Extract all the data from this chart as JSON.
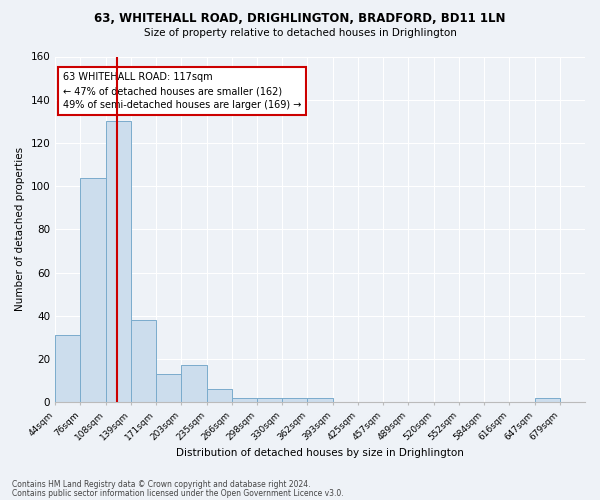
{
  "title1": "63, WHITEHALL ROAD, DRIGHLINGTON, BRADFORD, BD11 1LN",
  "title2": "Size of property relative to detached houses in Drighlington",
  "xlabel": "Distribution of detached houses by size in Drighlington",
  "ylabel": "Number of detached properties",
  "bin_labels": [
    "44sqm",
    "76sqm",
    "108sqm",
    "139sqm",
    "171sqm",
    "203sqm",
    "235sqm",
    "266sqm",
    "298sqm",
    "330sqm",
    "362sqm",
    "393sqm",
    "425sqm",
    "457sqm",
    "489sqm",
    "520sqm",
    "552sqm",
    "584sqm",
    "616sqm",
    "647sqm",
    "679sqm"
  ],
  "bar_values": [
    31,
    104,
    130,
    38,
    13,
    17,
    6,
    2,
    2,
    2,
    2,
    0,
    0,
    0,
    0,
    0,
    0,
    0,
    0,
    2,
    0
  ],
  "bar_color": "#ccdded",
  "bar_edge_color": "#7aabcc",
  "vline_x_index": 2.47,
  "vline_color": "#cc0000",
  "annotation_text": "63 WHITEHALL ROAD: 117sqm\n← 47% of detached houses are smaller (162)\n49% of semi-detached houses are larger (169) →",
  "annotation_box_color": "#ffffff",
  "annotation_box_edge": "#cc0000",
  "ylim": [
    0,
    160
  ],
  "yticks": [
    0,
    20,
    40,
    60,
    80,
    100,
    120,
    140,
    160
  ],
  "footer1": "Contains HM Land Registry data © Crown copyright and database right 2024.",
  "footer2": "Contains public sector information licensed under the Open Government Licence v3.0.",
  "bg_color": "#eef2f7"
}
